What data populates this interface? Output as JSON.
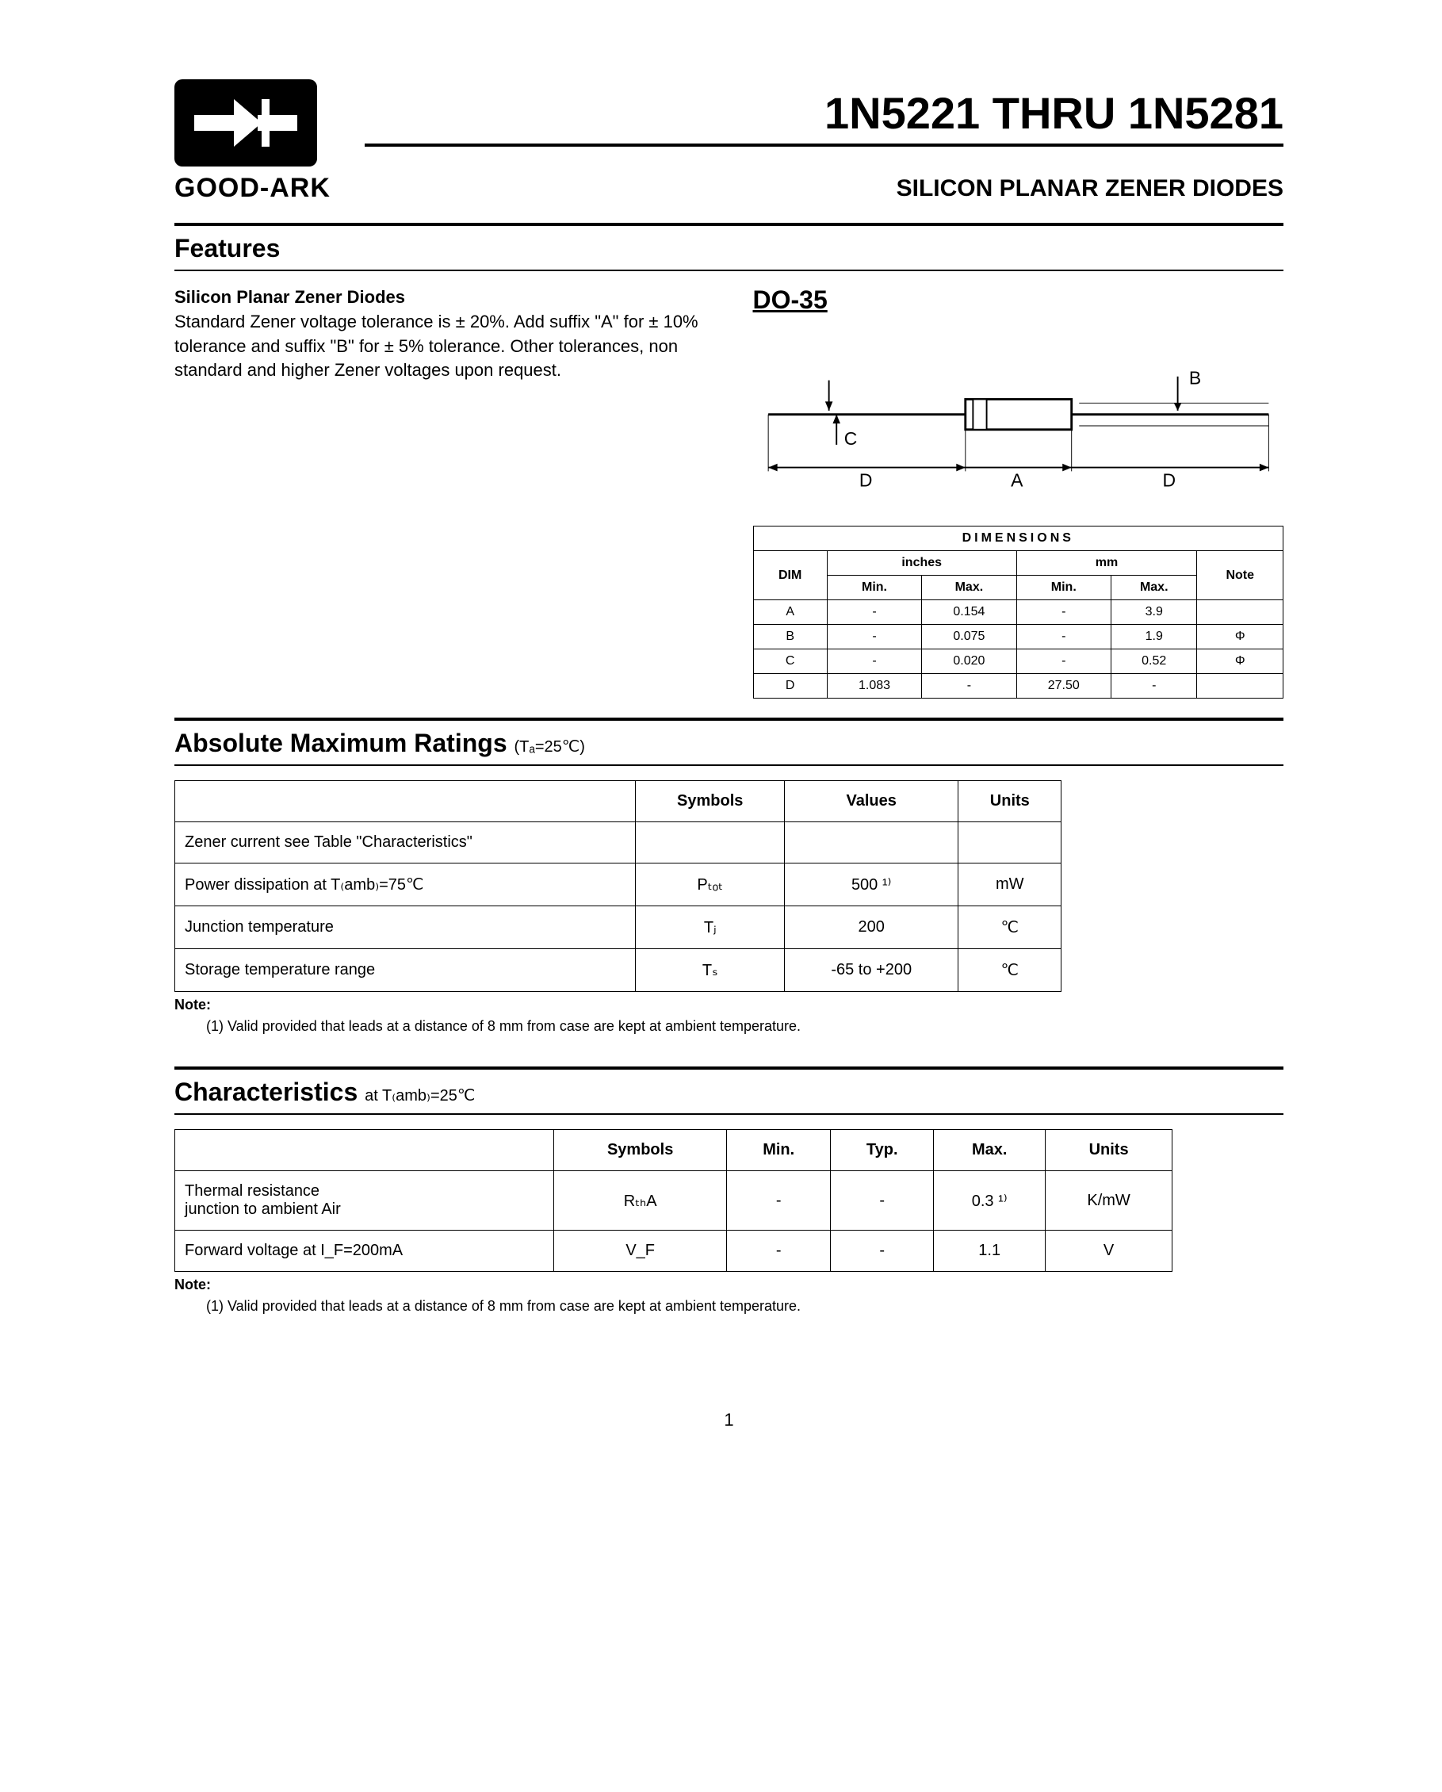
{
  "logo": {
    "brand": "GOOD-ARK"
  },
  "header": {
    "title": "1N5221 THRU 1N5281",
    "subtitle": "SILICON PLANAR ZENER DIODES"
  },
  "features": {
    "heading": "Features",
    "lead": "Silicon Planar Zener Diodes",
    "body": "Standard Zener voltage tolerance is ± 20%. Add suffix \"A\" for ± 10% tolerance and suffix \"B\" for ± 5% tolerance. Other tolerances, non standard and higher Zener voltages upon request."
  },
  "package": {
    "name": "DO-35",
    "labels": {
      "A": "A",
      "B": "B",
      "C": "C",
      "D": "D"
    }
  },
  "dimensions": {
    "title": "DIMENSIONS",
    "header": {
      "dim": "DIM",
      "inches": "inches",
      "mm": "mm",
      "note": "Note",
      "min": "Min.",
      "max": "Max."
    },
    "rows": [
      {
        "dim": "A",
        "in_min": "-",
        "in_max": "0.154",
        "mm_min": "-",
        "mm_max": "3.9",
        "note": ""
      },
      {
        "dim": "B",
        "in_min": "-",
        "in_max": "0.075",
        "mm_min": "-",
        "mm_max": "1.9",
        "note": "Φ"
      },
      {
        "dim": "C",
        "in_min": "-",
        "in_max": "0.020",
        "mm_min": "-",
        "mm_max": "0.52",
        "note": "Φ"
      },
      {
        "dim": "D",
        "in_min": "1.083",
        "in_max": "-",
        "mm_min": "27.50",
        "mm_max": "-",
        "note": ""
      }
    ]
  },
  "ratings": {
    "heading_main": "Absolute Maximum Ratings ",
    "heading_sub": "(Tₐ=25℃)",
    "cols": {
      "symbols": "Symbols",
      "values": "Values",
      "units": "Units"
    },
    "rows": [
      {
        "param": "Zener current see Table \"Characteristics\"",
        "sym": "",
        "val": "",
        "unit": ""
      },
      {
        "param": "Power dissipation at T₍amb₎=75℃",
        "sym": "Pₜₒₜ",
        "val": "500 ¹⁾",
        "unit": "mW"
      },
      {
        "param": "Junction temperature",
        "sym": "Tⱼ",
        "val": "200",
        "unit": "℃"
      },
      {
        "param": "Storage temperature range",
        "sym": "Tₛ",
        "val": "-65 to +200",
        "unit": "℃"
      }
    ],
    "note_label": "Note:",
    "note_text": "(1) Valid provided that leads at a distance of 8 mm from case are kept at ambient temperature."
  },
  "characteristics": {
    "heading_main": "Characteristics ",
    "heading_sub": "at T₍amb₎=25℃",
    "cols": {
      "symbols": "Symbols",
      "min": "Min.",
      "typ": "Typ.",
      "max": "Max.",
      "units": "Units"
    },
    "rows": [
      {
        "param": "Thermal resistance\njunction to ambient Air",
        "sym": "RₜₕA",
        "min": "-",
        "typ": "-",
        "max": "0.3 ¹⁾",
        "unit": "K/mW"
      },
      {
        "param": "Forward voltage at I_F=200mA",
        "sym": "V_F",
        "min": "-",
        "typ": "-",
        "max": "1.1",
        "unit": "V"
      }
    ],
    "note_label": "Note:",
    "note_text": "(1) Valid provided that leads at a distance of 8 mm from case are kept at ambient temperature."
  },
  "page": "1",
  "colors": {
    "text": "#000000",
    "background": "#ffffff",
    "rule": "#000000"
  }
}
